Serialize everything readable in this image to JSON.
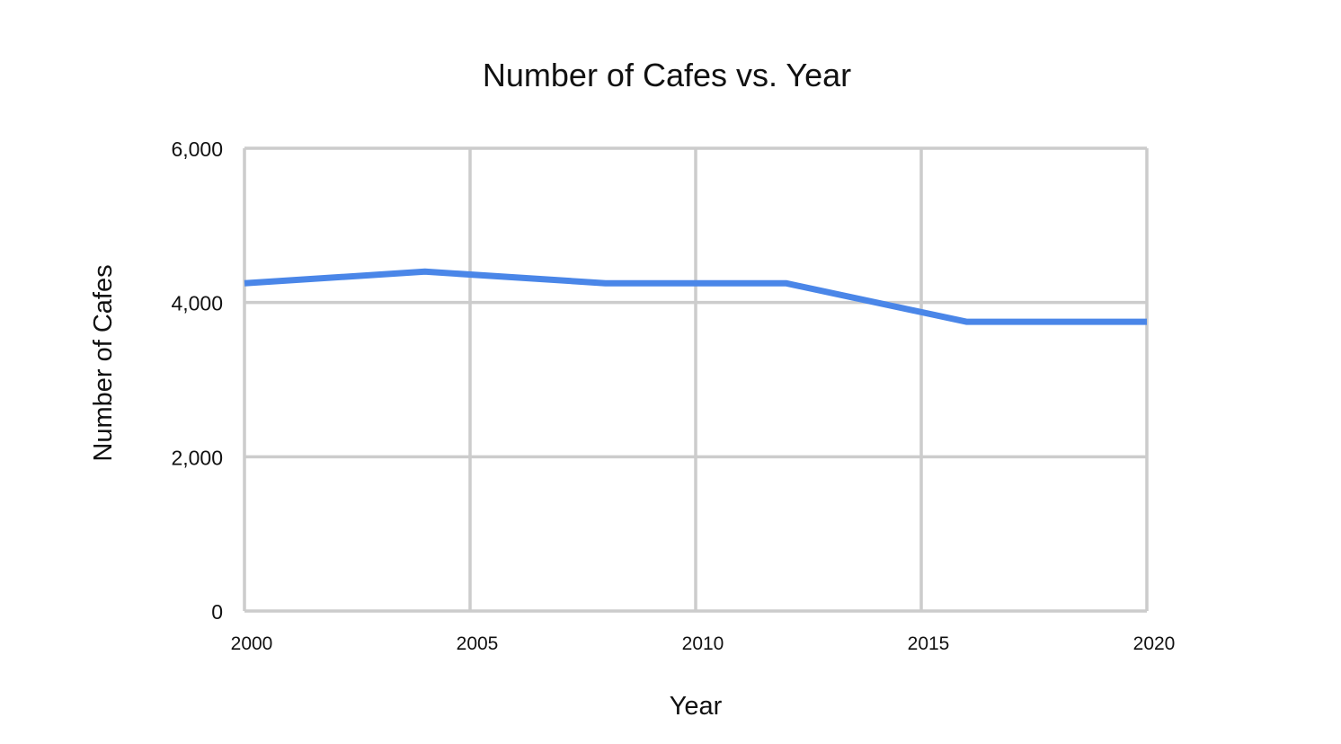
{
  "chart_data": {
    "type": "line",
    "title": "Number of Cafes vs. Year",
    "xlabel": "Year",
    "ylabel": "Number of Cafes",
    "x": [
      2000,
      2004,
      2008,
      2012,
      2016,
      2020
    ],
    "series": [
      {
        "values": [
          4250,
          4400,
          4250,
          4250,
          3750,
          3750
        ]
      }
    ],
    "xlim": [
      2000,
      2020
    ],
    "ylim": [
      0,
      6000
    ],
    "x_ticks": [
      "2000",
      "2005",
      "2010",
      "2015",
      "2020"
    ],
    "y_ticks": [
      "0",
      "2,000",
      "4,000",
      "6,000"
    ],
    "grid": true,
    "legend": "none"
  },
  "colors": {
    "series": "#4a86e8",
    "grid": "#cccccc",
    "text": "#111111",
    "background": "#ffffff"
  }
}
